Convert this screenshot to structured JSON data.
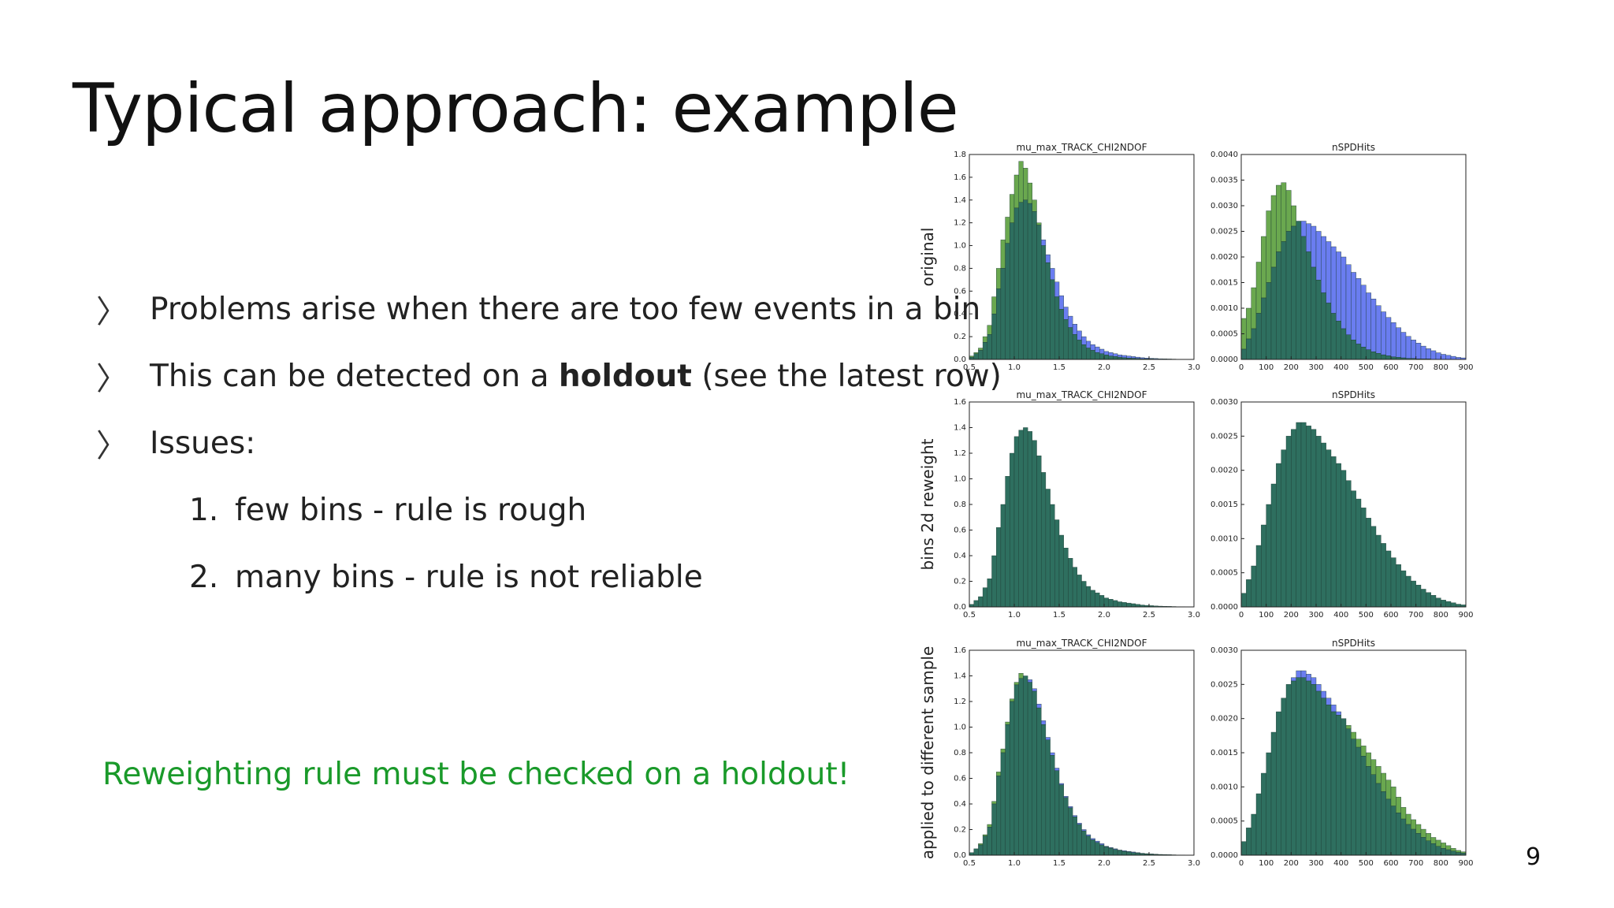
{
  "slide": {
    "title": "Typical approach: example",
    "page_number": "9",
    "bullets": [
      {
        "text_parts": [
          "Problems arise when there are too few events in a bin"
        ]
      },
      {
        "text_parts": [
          "This can be detected on a ",
          "holdout",
          " (see the latest row)"
        ]
      },
      {
        "text_parts": [
          "Issues:"
        ]
      }
    ],
    "sub_items": [
      {
        "num": "1.",
        "text": "few bins - rule is rough"
      },
      {
        "num": "2.",
        "text": "many bins - rule is not reliable"
      }
    ],
    "note": "Reweighting rule must be checked on a holdout!"
  },
  "colors": {
    "original": "#6a7df0",
    "target": "#6aa84f",
    "overlap": "#2e6f5f",
    "note_green": "#1a9a2a"
  },
  "chart_data": [
    {
      "type": "bar",
      "row_label": "original",
      "title": "mu_max_TRACK_CHI2NDOF",
      "x_start": 0.5,
      "bin_width": 0.05,
      "xlim": [
        0.5,
        3.0
      ],
      "ylim": [
        0,
        1.8
      ],
      "xticks": [
        "0.5",
        "1.0",
        "1.5",
        "2.0",
        "2.5",
        "3.0"
      ],
      "yticks": [
        "0.0",
        "0.2",
        "0.4",
        "0.6",
        "0.8",
        "1.0",
        "1.2",
        "1.4",
        "1.6",
        "1.8"
      ],
      "series": [
        {
          "values": [
            0.02,
            0.05,
            0.08,
            0.15,
            0.22,
            0.4,
            0.62,
            0.8,
            1.02,
            1.2,
            1.33,
            1.38,
            1.4,
            1.37,
            1.3,
            1.18,
            1.05,
            0.92,
            0.8,
            0.68,
            0.56,
            0.46,
            0.38,
            0.31,
            0.25,
            0.2,
            0.16,
            0.13,
            0.11,
            0.09,
            0.07,
            0.06,
            0.05,
            0.04,
            0.035,
            0.03,
            0.025,
            0.02,
            0.015,
            0.012,
            0.01,
            0.008,
            0.006,
            0.005,
            0.004,
            0.003,
            0.002,
            0.002,
            0.001,
            0.001
          ]
        },
        {
          "values": [
            0.03,
            0.06,
            0.1,
            0.2,
            0.3,
            0.55,
            0.8,
            1.05,
            1.25,
            1.45,
            1.62,
            1.74,
            1.68,
            1.55,
            1.4,
            1.2,
            1.0,
            0.85,
            0.7,
            0.55,
            0.44,
            0.35,
            0.28,
            0.22,
            0.17,
            0.13,
            0.1,
            0.08,
            0.06,
            0.05,
            0.04,
            0.03,
            0.025,
            0.02,
            0.015,
            0.012,
            0.01,
            0.008,
            0.006,
            0.005,
            0.004,
            0.003,
            0.002,
            0.002,
            0.001,
            0.001,
            0.001,
            0.0,
            0.0,
            0.0
          ]
        }
      ]
    },
    {
      "type": "bar",
      "row_label": "original",
      "title": "nSPDHits",
      "x_start": 0,
      "bin_width": 20,
      "xlim": [
        0,
        900
      ],
      "ylim": [
        0,
        0.004
      ],
      "xticks": [
        "0",
        "100",
        "200",
        "300",
        "400",
        "500",
        "600",
        "700",
        "800",
        "900"
      ],
      "yticks": [
        "0.0000",
        "0.0005",
        "0.0010",
        "0.0015",
        "0.0020",
        "0.0025",
        "0.0030",
        "0.0035",
        "0.0040"
      ],
      "series": [
        {
          "values": [
            0.0002,
            0.0004,
            0.0006,
            0.0009,
            0.0012,
            0.0015,
            0.0018,
            0.0021,
            0.0023,
            0.0025,
            0.0026,
            0.0027,
            0.0027,
            0.00265,
            0.0026,
            0.0025,
            0.0024,
            0.0023,
            0.0022,
            0.0021,
            0.002,
            0.00185,
            0.0017,
            0.00158,
            0.00145,
            0.0013,
            0.00118,
            0.00105,
            0.00093,
            0.00082,
            0.00072,
            0.00062,
            0.00053,
            0.00045,
            0.00038,
            0.00032,
            0.00026,
            0.00021,
            0.00017,
            0.00013,
            0.0001,
            8e-05,
            6e-05,
            4e-05,
            3e-05
          ]
        },
        {
          "values": [
            0.0008,
            0.001,
            0.0014,
            0.0019,
            0.0024,
            0.0029,
            0.0032,
            0.0034,
            0.00345,
            0.0033,
            0.003,
            0.0027,
            0.0024,
            0.0021,
            0.0018,
            0.00155,
            0.0013,
            0.0011,
            0.0009,
            0.00075,
            0.0006,
            0.00048,
            0.00038,
            0.0003,
            0.00024,
            0.00019,
            0.00015,
            0.00012,
            9e-05,
            7e-05,
            5e-05,
            4e-05,
            3e-05,
            2e-05,
            2e-05,
            1e-05,
            1e-05,
            1e-05,
            0.0,
            0.0,
            0.0,
            0.0,
            0.0,
            0.0,
            0.0
          ]
        }
      ]
    },
    {
      "type": "bar",
      "row_label": "bins 2d reweight",
      "title": "mu_max_TRACK_CHI2NDOF",
      "x_start": 0.5,
      "bin_width": 0.05,
      "xlim": [
        0.5,
        3.0
      ],
      "ylim": [
        0,
        1.6
      ],
      "xticks": [
        "0.5",
        "1.0",
        "1.5",
        "2.0",
        "2.5",
        "3.0"
      ],
      "yticks": [
        "0.0",
        "0.2",
        "0.4",
        "0.6",
        "0.8",
        "1.0",
        "1.2",
        "1.4",
        "1.6"
      ],
      "series": [
        {
          "values": [
            0.02,
            0.05,
            0.08,
            0.15,
            0.22,
            0.4,
            0.62,
            0.8,
            1.02,
            1.2,
            1.33,
            1.38,
            1.4,
            1.37,
            1.3,
            1.18,
            1.05,
            0.92,
            0.8,
            0.68,
            0.56,
            0.46,
            0.38,
            0.31,
            0.25,
            0.2,
            0.16,
            0.13,
            0.11,
            0.09,
            0.07,
            0.06,
            0.05,
            0.04,
            0.035,
            0.03,
            0.025,
            0.02,
            0.015,
            0.012,
            0.01,
            0.008,
            0.006,
            0.005,
            0.004,
            0.003,
            0.002,
            0.002,
            0.001,
            0.001
          ]
        },
        {
          "values": [
            0.02,
            0.05,
            0.08,
            0.15,
            0.22,
            0.4,
            0.62,
            0.8,
            1.02,
            1.2,
            1.33,
            1.38,
            1.4,
            1.37,
            1.3,
            1.18,
            1.05,
            0.92,
            0.8,
            0.68,
            0.56,
            0.46,
            0.38,
            0.31,
            0.25,
            0.2,
            0.16,
            0.13,
            0.11,
            0.09,
            0.07,
            0.06,
            0.05,
            0.04,
            0.035,
            0.03,
            0.025,
            0.02,
            0.015,
            0.012,
            0.01,
            0.008,
            0.006,
            0.005,
            0.004,
            0.003,
            0.002,
            0.002,
            0.001,
            0.001
          ]
        }
      ]
    },
    {
      "type": "bar",
      "row_label": "bins 2d reweight",
      "title": "nSPDHits",
      "x_start": 0,
      "bin_width": 20,
      "xlim": [
        0,
        900
      ],
      "ylim": [
        0,
        0.003
      ],
      "xticks": [
        "0",
        "100",
        "200",
        "300",
        "400",
        "500",
        "600",
        "700",
        "800",
        "900"
      ],
      "yticks": [
        "0.0000",
        "0.0005",
        "0.0010",
        "0.0015",
        "0.0020",
        "0.0025",
        "0.0030"
      ],
      "series": [
        {
          "values": [
            0.0002,
            0.0004,
            0.0006,
            0.0009,
            0.0012,
            0.0015,
            0.0018,
            0.0021,
            0.0023,
            0.0025,
            0.0026,
            0.0027,
            0.0027,
            0.00265,
            0.0026,
            0.0025,
            0.0024,
            0.0023,
            0.0022,
            0.0021,
            0.002,
            0.00185,
            0.0017,
            0.00158,
            0.00145,
            0.0013,
            0.00118,
            0.00105,
            0.00093,
            0.00082,
            0.00072,
            0.00062,
            0.00053,
            0.00045,
            0.00038,
            0.00032,
            0.00026,
            0.00021,
            0.00017,
            0.00013,
            0.0001,
            8e-05,
            6e-05,
            4e-05,
            3e-05
          ]
        },
        {
          "values": [
            0.0002,
            0.0004,
            0.0006,
            0.0009,
            0.0012,
            0.0015,
            0.0018,
            0.0021,
            0.0023,
            0.0025,
            0.0026,
            0.0027,
            0.0027,
            0.00265,
            0.0026,
            0.0025,
            0.0024,
            0.0023,
            0.0022,
            0.0021,
            0.002,
            0.00185,
            0.0017,
            0.00158,
            0.00145,
            0.0013,
            0.00118,
            0.00105,
            0.00093,
            0.00082,
            0.00072,
            0.00062,
            0.00053,
            0.00045,
            0.00038,
            0.00032,
            0.00026,
            0.00021,
            0.00017,
            0.00013,
            0.0001,
            8e-05,
            6e-05,
            4e-05,
            3e-05
          ]
        }
      ]
    },
    {
      "type": "bar",
      "row_label": "applied to different sample",
      "title": "mu_max_TRACK_CHI2NDOF",
      "x_start": 0.5,
      "bin_width": 0.05,
      "xlim": [
        0.5,
        3.0
      ],
      "ylim": [
        0,
        1.6
      ],
      "xticks": [
        "0.5",
        "1.0",
        "1.5",
        "2.0",
        "2.5",
        "3.0"
      ],
      "yticks": [
        "0.0",
        "0.2",
        "0.4",
        "0.6",
        "0.8",
        "1.0",
        "1.2",
        "1.4",
        "1.6"
      ],
      "series": [
        {
          "values": [
            0.02,
            0.05,
            0.08,
            0.15,
            0.22,
            0.4,
            0.62,
            0.8,
            1.02,
            1.2,
            1.33,
            1.38,
            1.4,
            1.37,
            1.3,
            1.18,
            1.05,
            0.92,
            0.8,
            0.68,
            0.56,
            0.46,
            0.38,
            0.31,
            0.25,
            0.2,
            0.16,
            0.13,
            0.11,
            0.09,
            0.07,
            0.06,
            0.05,
            0.04,
            0.035,
            0.03,
            0.025,
            0.02,
            0.015,
            0.012,
            0.01,
            0.008,
            0.006,
            0.005,
            0.004,
            0.003,
            0.002,
            0.002,
            0.001,
            0.001
          ]
        },
        {
          "values": [
            0.02,
            0.05,
            0.09,
            0.16,
            0.24,
            0.42,
            0.65,
            0.83,
            1.04,
            1.22,
            1.35,
            1.42,
            1.4,
            1.35,
            1.28,
            1.15,
            1.02,
            0.9,
            0.78,
            0.66,
            0.55,
            0.45,
            0.37,
            0.3,
            0.24,
            0.19,
            0.15,
            0.12,
            0.1,
            0.08,
            0.065,
            0.055,
            0.045,
            0.037,
            0.03,
            0.025,
            0.02,
            0.016,
            0.012,
            0.01,
            0.008,
            0.006,
            0.005,
            0.004,
            0.003,
            0.002,
            0.002,
            0.001,
            0.001,
            0.001
          ]
        }
      ]
    },
    {
      "type": "bar",
      "row_label": "applied to different sample",
      "title": "nSPDHits",
      "x_start": 0,
      "bin_width": 20,
      "xlim": [
        0,
        900
      ],
      "ylim": [
        0,
        0.003
      ],
      "xticks": [
        "0",
        "100",
        "200",
        "300",
        "400",
        "500",
        "600",
        "700",
        "800",
        "900"
      ],
      "yticks": [
        "0.0000",
        "0.0005",
        "0.0010",
        "0.0015",
        "0.0020",
        "0.0025",
        "0.0030"
      ],
      "series": [
        {
          "values": [
            0.0002,
            0.0004,
            0.0006,
            0.0009,
            0.0012,
            0.0015,
            0.0018,
            0.0021,
            0.0023,
            0.0025,
            0.0026,
            0.0027,
            0.0027,
            0.00265,
            0.0026,
            0.0025,
            0.0024,
            0.0023,
            0.0022,
            0.0021,
            0.002,
            0.00185,
            0.0017,
            0.00158,
            0.00145,
            0.0013,
            0.00118,
            0.00105,
            0.00093,
            0.00082,
            0.00072,
            0.00062,
            0.00053,
            0.00045,
            0.00038,
            0.00032,
            0.00026,
            0.00021,
            0.00017,
            0.00013,
            0.0001,
            8e-05,
            6e-05,
            4e-05,
            3e-05
          ]
        },
        {
          "values": [
            0.0002,
            0.0004,
            0.0006,
            0.0009,
            0.0012,
            0.0015,
            0.0018,
            0.0021,
            0.0023,
            0.0025,
            0.00255,
            0.0026,
            0.0026,
            0.00255,
            0.0025,
            0.0024,
            0.0023,
            0.0022,
            0.0021,
            0.00205,
            0.002,
            0.0019,
            0.0018,
            0.0017,
            0.0016,
            0.0015,
            0.0014,
            0.0013,
            0.0012,
            0.0011,
            0.001,
            0.00085,
            0.0007,
            0.0006,
            0.00052,
            0.00045,
            0.00038,
            0.00032,
            0.00026,
            0.00022,
            0.00018,
            0.00014,
            0.0001,
            7e-05,
            5e-05
          ]
        }
      ]
    }
  ]
}
